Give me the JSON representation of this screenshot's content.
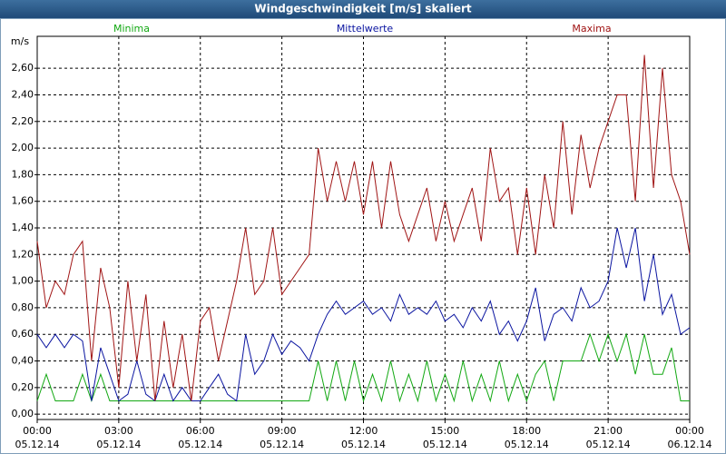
{
  "chart_data": {
    "type": "line",
    "title": "Windgeschwindigkeit [m/s] skaliert",
    "ylabel": "m/s",
    "grid": true,
    "xlim": [
      0,
      1440
    ],
    "xticks": [
      {
        "value": 0,
        "label": "00:00",
        "date": "05.12.14"
      },
      {
        "value": 180,
        "label": "03:00",
        "date": "05.12.14"
      },
      {
        "value": 360,
        "label": "06:00",
        "date": "05.12.14"
      },
      {
        "value": 540,
        "label": "09:00",
        "date": "05.12.14"
      },
      {
        "value": 720,
        "label": "12:00",
        "date": "05.12.14"
      },
      {
        "value": 900,
        "label": "15:00",
        "date": "05.12.14"
      },
      {
        "value": 1080,
        "label": "18:00",
        "date": "05.12.14"
      },
      {
        "value": 1260,
        "label": "21:00",
        "date": "05.12.14"
      },
      {
        "value": 1440,
        "label": "00:00",
        "date": "06.12.14"
      }
    ],
    "ylim": [
      -0.04,
      2.84
    ],
    "yticks": [
      {
        "value": 0,
        "label": "0,00"
      },
      {
        "value": 0.2,
        "label": "0,20"
      },
      {
        "value": 0.4,
        "label": "0,40"
      },
      {
        "value": 0.6,
        "label": "0,60"
      },
      {
        "value": 0.8,
        "label": "0,80"
      },
      {
        "value": 1.0,
        "label": "1,00"
      },
      {
        "value": 1.2,
        "label": "1,20"
      },
      {
        "value": 1.4,
        "label": "1,40"
      },
      {
        "value": 1.6,
        "label": "1,60"
      },
      {
        "value": 1.8,
        "label": "1,80"
      },
      {
        "value": 2.0,
        "label": "2,00"
      },
      {
        "value": 2.2,
        "label": "2,20"
      },
      {
        "value": 2.4,
        "label": "2,40"
      },
      {
        "value": 2.6,
        "label": "2,60"
      }
    ],
    "x": [
      0,
      20,
      40,
      60,
      80,
      100,
      120,
      140,
      160,
      180,
      200,
      220,
      240,
      260,
      280,
      300,
      320,
      340,
      360,
      380,
      400,
      420,
      440,
      460,
      480,
      500,
      520,
      540,
      560,
      580,
      600,
      620,
      640,
      660,
      680,
      700,
      720,
      740,
      760,
      780,
      800,
      820,
      840,
      860,
      880,
      900,
      920,
      940,
      960,
      980,
      1000,
      1020,
      1040,
      1060,
      1080,
      1100,
      1120,
      1140,
      1160,
      1180,
      1200,
      1220,
      1240,
      1260,
      1280,
      1300,
      1320,
      1340,
      1360,
      1380,
      1400,
      1420,
      1440
    ],
    "series": [
      {
        "name": "Minima",
        "color": "#12a812",
        "values": [
          0.1,
          0.3,
          0.1,
          0.1,
          0.1,
          0.3,
          0.1,
          0.3,
          0.1,
          0.1,
          0.1,
          0.1,
          0.1,
          0.1,
          0.1,
          0.1,
          0.1,
          0.1,
          0.1,
          0.1,
          0.1,
          0.1,
          0.1,
          0.1,
          0.1,
          0.1,
          0.1,
          0.1,
          0.1,
          0.1,
          0.1,
          0.4,
          0.1,
          0.4,
          0.1,
          0.4,
          0.1,
          0.3,
          0.1,
          0.4,
          0.1,
          0.3,
          0.1,
          0.4,
          0.1,
          0.3,
          0.1,
          0.4,
          0.1,
          0.3,
          0.1,
          0.4,
          0.1,
          0.3,
          0.1,
          0.3,
          0.4,
          0.1,
          0.4,
          0.4,
          0.4,
          0.6,
          0.4,
          0.6,
          0.4,
          0.6,
          0.3,
          0.6,
          0.3,
          0.3,
          0.5,
          0.1,
          0.1
        ]
      },
      {
        "name": "Mittelwerte",
        "color": "#0a14a0",
        "values": [
          0.6,
          0.5,
          0.6,
          0.5,
          0.6,
          0.55,
          0.1,
          0.5,
          0.3,
          0.1,
          0.15,
          0.4,
          0.15,
          0.1,
          0.3,
          0.1,
          0.2,
          0.1,
          0.1,
          0.2,
          0.3,
          0.15,
          0.1,
          0.6,
          0.3,
          0.4,
          0.6,
          0.45,
          0.55,
          0.5,
          0.4,
          0.6,
          0.75,
          0.85,
          0.75,
          0.8,
          0.85,
          0.75,
          0.8,
          0.7,
          0.9,
          0.75,
          0.8,
          0.75,
          0.85,
          0.7,
          0.75,
          0.65,
          0.8,
          0.7,
          0.85,
          0.6,
          0.7,
          0.55,
          0.7,
          0.95,
          0.55,
          0.75,
          0.8,
          0.7,
          0.95,
          0.8,
          0.85,
          1.0,
          1.4,
          1.1,
          1.4,
          0.85,
          1.2,
          0.75,
          0.9,
          0.6,
          0.65
        ]
      },
      {
        "name": "Maxima",
        "color": "#a01414",
        "values": [
          1.3,
          0.8,
          1.0,
          0.9,
          1.2,
          1.3,
          0.4,
          1.1,
          0.8,
          0.2,
          1.0,
          0.4,
          0.9,
          0.1,
          0.7,
          0.2,
          0.6,
          0.1,
          0.7,
          0.8,
          0.4,
          0.7,
          1.0,
          1.4,
          0.9,
          1.0,
          1.4,
          0.9,
          1.0,
          1.1,
          1.2,
          2.0,
          1.6,
          1.9,
          1.6,
          1.9,
          1.5,
          1.9,
          1.4,
          1.9,
          1.5,
          1.3,
          1.5,
          1.7,
          1.3,
          1.6,
          1.3,
          1.5,
          1.7,
          1.3,
          2.0,
          1.6,
          1.7,
          1.2,
          1.7,
          1.2,
          1.8,
          1.4,
          2.2,
          1.5,
          2.1,
          1.7,
          2.0,
          2.2,
          2.4,
          2.4,
          1.6,
          2.7,
          1.7,
          2.6,
          1.8,
          1.6,
          1.2
        ]
      }
    ]
  }
}
